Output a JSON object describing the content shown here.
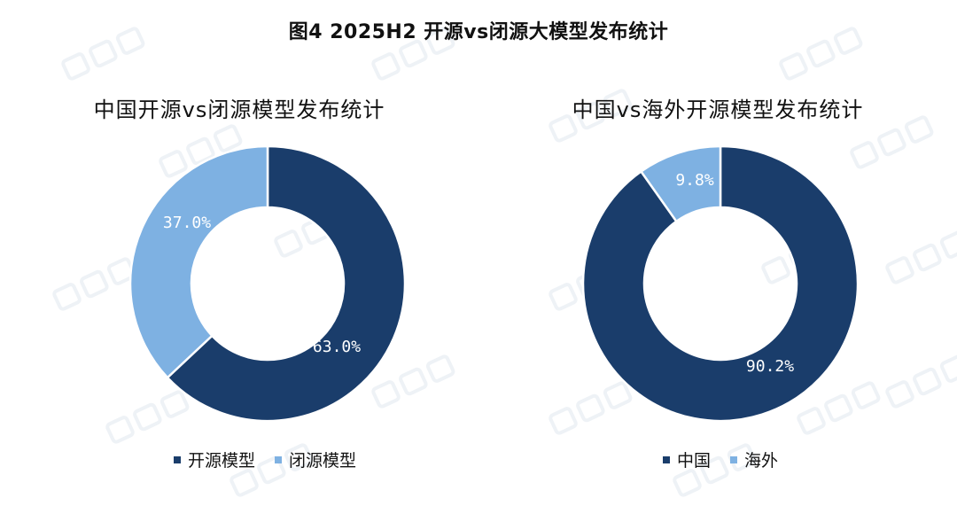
{
  "title": "图4 2025H2 开源vs闭源大模型发布统计",
  "colors": {
    "dark": "#1a3d6b",
    "light": "#7eb1e2"
  },
  "chart_data": [
    {
      "type": "pie",
      "title": "中国开源vs闭源模型发布统计",
      "categories": [
        "开源模型",
        "闭源模型"
      ],
      "values": [
        63.0,
        37.0
      ],
      "labels": [
        "63.0%",
        "37.0%"
      ],
      "legend": "bottom"
    },
    {
      "type": "pie",
      "title": "中国vs海外开源模型发布统计",
      "categories": [
        "中国",
        "海外"
      ],
      "values": [
        90.2,
        9.8
      ],
      "labels": [
        "90.2%",
        "9.8%"
      ],
      "legend": "bottom"
    }
  ]
}
